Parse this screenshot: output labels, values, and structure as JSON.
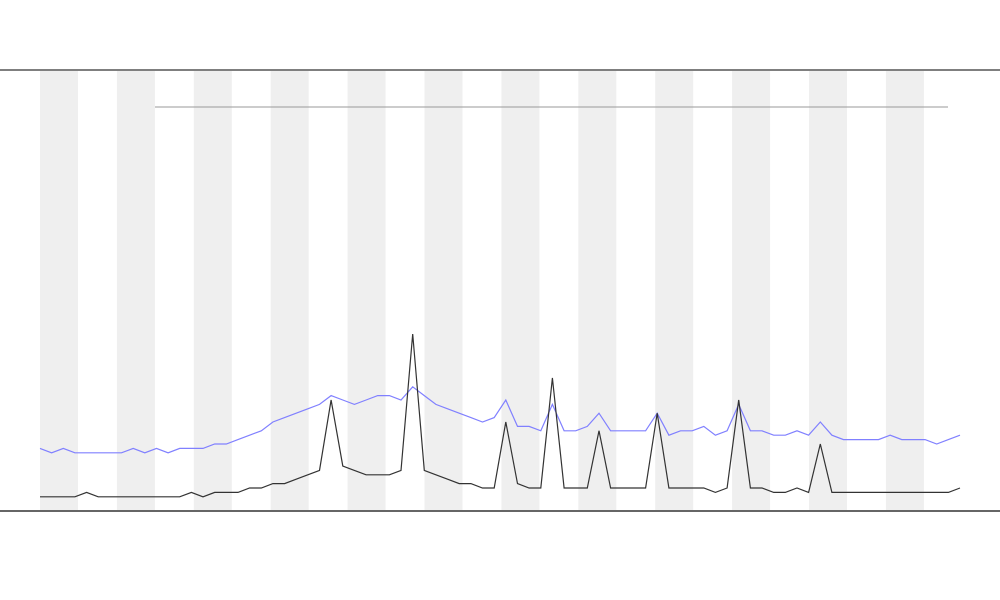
{
  "chart_data": {
    "type": "line",
    "ylim": [
      0,
      100
    ],
    "series": [
      {
        "color": "#8080ff",
        "values": [
          14,
          13,
          14,
          13,
          13,
          13,
          13,
          13,
          14,
          13,
          14,
          13,
          14,
          14,
          14,
          15,
          15,
          16,
          17,
          18,
          20,
          21,
          22,
          23,
          24,
          26,
          25,
          24,
          25,
          26,
          26,
          25,
          28,
          26,
          24,
          23,
          22,
          21,
          20,
          21,
          25,
          19,
          19,
          18,
          24,
          18,
          18,
          19,
          22,
          18,
          18,
          18,
          18,
          22,
          17,
          18,
          18,
          19,
          17,
          18,
          24,
          18,
          18,
          17,
          17,
          18,
          17,
          20,
          17,
          16,
          16,
          16,
          16,
          17,
          16,
          16,
          16,
          15,
          16,
          17
        ]
      },
      {
        "color": "#333333",
        "values": [
          3,
          3,
          3,
          3,
          4,
          3,
          3,
          3,
          3,
          3,
          3,
          3,
          3,
          4,
          3,
          4,
          4,
          4,
          5,
          5,
          6,
          6,
          7,
          8,
          9,
          25,
          10,
          9,
          8,
          8,
          8,
          9,
          40,
          9,
          8,
          7,
          6,
          6,
          5,
          5,
          20,
          6,
          5,
          5,
          30,
          5,
          5,
          5,
          18,
          5,
          5,
          5,
          5,
          22,
          5,
          5,
          5,
          5,
          4,
          5,
          25,
          5,
          5,
          4,
          4,
          5,
          4,
          15,
          4,
          4,
          4,
          4,
          4,
          4,
          4,
          4,
          4,
          4,
          4,
          5
        ]
      }
    ]
  }
}
